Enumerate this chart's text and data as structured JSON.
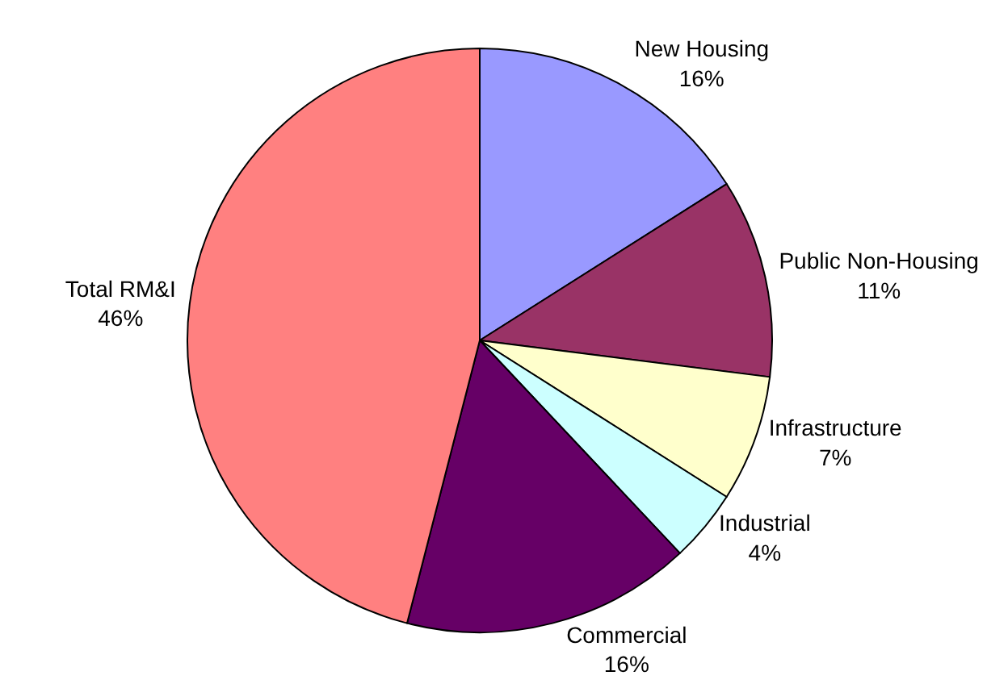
{
  "chart_data": {
    "type": "pie",
    "categories": [
      "New Housing",
      "Public Non-Housing",
      "Infrastructure",
      "Industrial",
      "Commercial",
      "Total RM&I"
    ],
    "values": [
      16,
      11,
      7,
      4,
      16,
      46
    ],
    "value_labels": [
      "16%",
      "11%",
      "7%",
      "4%",
      "16%",
      "46%"
    ],
    "colors": [
      "#9999ff",
      "#993366",
      "#ffffcc",
      "#ccffff",
      "#660066",
      "#ff8080"
    ],
    "legend": false
  }
}
